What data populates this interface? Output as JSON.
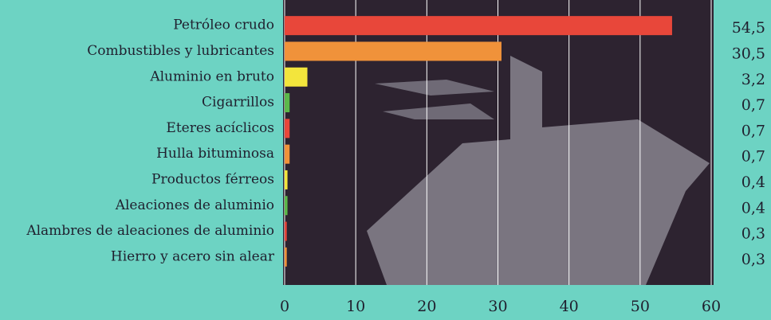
{
  "chart_data": {
    "type": "barh",
    "categories": [
      "Petróleo crudo",
      "Combustibles y lubricantes",
      "Aluminio en bruto",
      "Cigarrillos",
      "Eteres acíclicos",
      "Hulla bituminosa",
      "Productos férreos",
      "Aleaciones de aluminio",
      "Alambres de aleaciones de aluminio",
      "Hierro y acero sin alear"
    ],
    "values": [
      54.5,
      30.5,
      3.2,
      0.7,
      0.7,
      0.7,
      0.4,
      0.4,
      0.3,
      0.3
    ],
    "value_labels": [
      "54,5",
      "30,5",
      "3,2",
      "0,7",
      "0,7",
      "0,7",
      "0,4",
      "0,4",
      "0,3",
      "0,3"
    ],
    "colors": [
      "#e8473a",
      "#f0923a",
      "#f3e53c",
      "#5cb84a",
      "#e8473a",
      "#f0923a",
      "#f3e53c",
      "#5cb84a",
      "#e8473a",
      "#f0923a"
    ],
    "xlim": [
      0,
      60
    ],
    "xticks": [
      0,
      10,
      20,
      30,
      40,
      50,
      60
    ],
    "grid": true
  }
}
